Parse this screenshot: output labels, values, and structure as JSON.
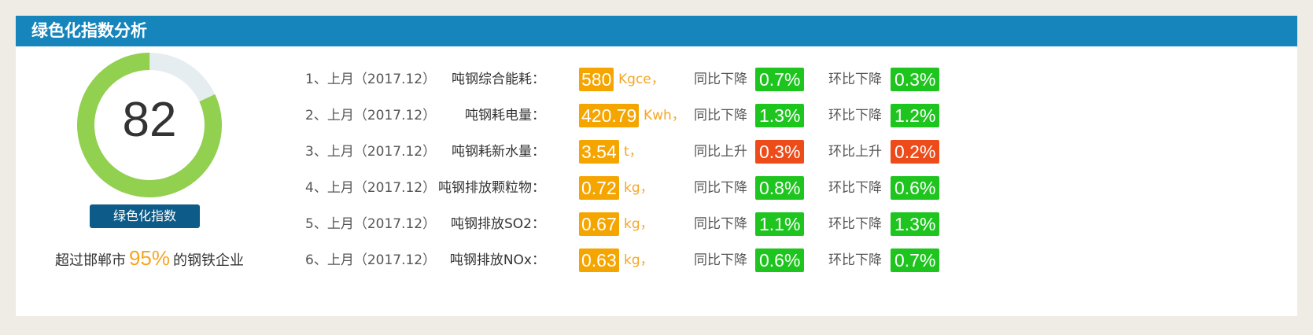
{
  "panel": {
    "title": "绿色化指数分析"
  },
  "gauge": {
    "value": "82",
    "max": 100,
    "label": "绿色化指数",
    "colors": {
      "fill": "#92d050",
      "track": "#e6edf0"
    }
  },
  "exceed": {
    "prefix": "超过邯郸市",
    "percent": "95%",
    "suffix": "的钢铁企业"
  },
  "colors": {
    "header": "#1585bc",
    "value": "#f5a500",
    "down": "#1ec51e",
    "up": "#ee4b1a"
  },
  "rows": [
    {
      "index": "1、上月（2017.12）",
      "metric": "吨钢综合能耗：",
      "value": "580",
      "unit": "Kgce，",
      "yoy_label": "同比下降",
      "yoy_value": "0.7%",
      "yoy_dir": "down",
      "mom_label": "环比下降",
      "mom_value": "0.3%",
      "mom_dir": "down"
    },
    {
      "index": "2、上月（2017.12）",
      "metric": "吨钢耗电量：",
      "value": "420.79",
      "unit": "Kwh，",
      "yoy_label": "同比下降",
      "yoy_value": "1.3%",
      "yoy_dir": "down",
      "mom_label": "环比下降",
      "mom_value": "1.2%",
      "mom_dir": "down"
    },
    {
      "index": "3、上月（2017.12）",
      "metric": "吨钢耗新水量：",
      "value": "3.54",
      "unit": "t，",
      "yoy_label": "同比上升",
      "yoy_value": "0.3%",
      "yoy_dir": "up",
      "mom_label": "环比上升",
      "mom_value": "0.2%",
      "mom_dir": "up"
    },
    {
      "index": "4、上月（2017.12）",
      "metric": "吨钢排放颗粒物：",
      "value": "0.72",
      "unit": "kg，",
      "yoy_label": "同比下降",
      "yoy_value": "0.8%",
      "yoy_dir": "down",
      "mom_label": "环比下降",
      "mom_value": "0.6%",
      "mom_dir": "down"
    },
    {
      "index": "5、上月（2017.12）",
      "metric": "吨钢排放SO2：",
      "value": "0.67",
      "unit": "kg，",
      "yoy_label": "同比下降",
      "yoy_value": "1.1%",
      "yoy_dir": "down",
      "mom_label": "环比下降",
      "mom_value": "1.3%",
      "mom_dir": "down"
    },
    {
      "index": "6、上月（2017.12）",
      "metric": "吨钢排放NOx：",
      "value": "0.63",
      "unit": "kg，",
      "yoy_label": "同比下降",
      "yoy_value": "0.6%",
      "yoy_dir": "down",
      "mom_label": "环比下降",
      "mom_value": "0.7%",
      "mom_dir": "down"
    }
  ]
}
